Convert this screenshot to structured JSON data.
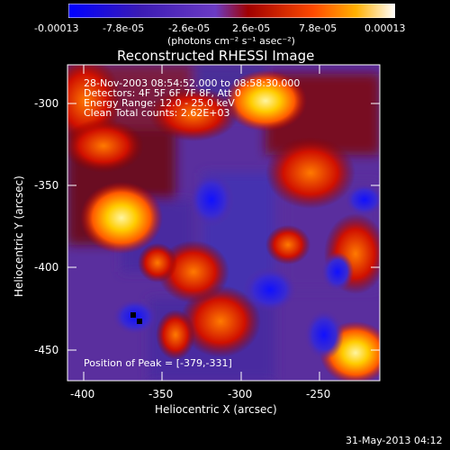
{
  "colorbar": {
    "ticks": [
      "-0.00013",
      "-7.8e-05",
      "-2.6e-05",
      "2.6e-05",
      "7.8e-05",
      "0.00013"
    ],
    "units": "(photons cm⁻² s⁻¹ asec⁻²)"
  },
  "plot": {
    "title": "Reconstructed RHESSI Image",
    "xlabel": "Heliocentric X (arcsec)",
    "ylabel": "Heliocentric Y (arcsec)",
    "xticks": [
      "-400",
      "-350",
      "-300",
      "-250"
    ],
    "yticks": [
      "-300",
      "-350",
      "-400",
      "-450"
    ],
    "overlay": [
      "28-Nov-2003 08:54:52.000 to 08:58:30.000",
      "Detectors: 4F 5F 6F 7F 8F, Att 0",
      "Energy Range: 12.0 - 25.0 keV",
      "Clean     Total counts: 2.62E+03"
    ],
    "peak": "Position of Peak = [-379,-331]"
  },
  "footer": {
    "date": "31-May-2013 04:12"
  }
}
